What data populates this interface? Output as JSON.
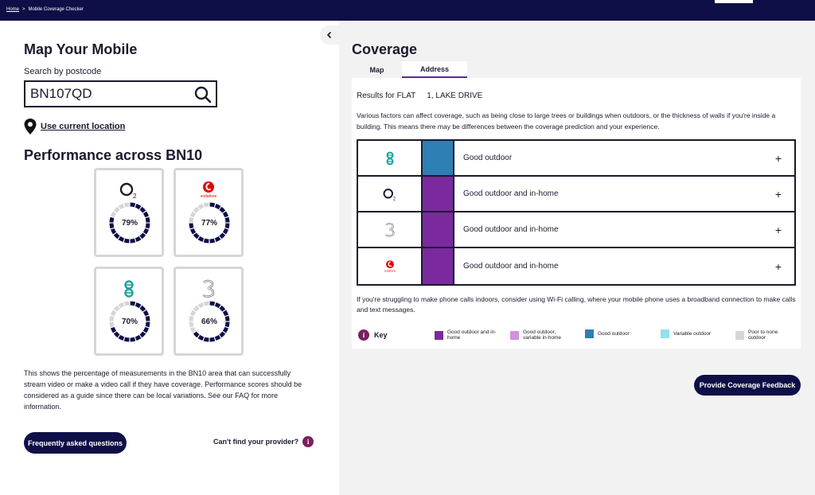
{
  "breadcrumb": {
    "home": "Home",
    "separator": ">",
    "current": "Mobile Coverage Checker"
  },
  "left": {
    "title": "Map Your Mobile",
    "search_label": "Search by postcode",
    "search_value": "BN107QD",
    "use_location": "Use current location",
    "performance_title": "Performance across BN10",
    "operators": [
      {
        "name": "O2",
        "icon": "o2-logo",
        "percent": "79%",
        "value": 79
      },
      {
        "name": "vodafone",
        "icon": "vodafone-logo",
        "percent": "77%",
        "value": 77
      },
      {
        "name": "EE",
        "icon": "ee-logo",
        "percent": "70%",
        "value": 70
      },
      {
        "name": "Three",
        "icon": "three-logo",
        "percent": "66%",
        "value": 66
      }
    ],
    "description": "This shows the percentage of measurements in the BN10 area that can successfully stream video or make a video call if they have coverage. Performance scores should be considered as a guide since there can be local variations. See our FAQ for more information.",
    "faq_button": "Frequently asked questions",
    "cant_find": "Can't find your provider?"
  },
  "coverage": {
    "title": "Coverage",
    "tabs": [
      {
        "label": "Map"
      },
      {
        "label": "Address"
      }
    ],
    "results_prefix": "Results for FLAT",
    "results_address": "1, LAKE DRIVE",
    "factors": "Various factors can affect coverage, such as being close to large trees or buildings when outdoors, or the thickness of walls if you're inside a building. This means there may be differences between the coverage prediction and your experience.",
    "rows": [
      {
        "operator": "EE",
        "icon": "ee-logo",
        "status": "Good outdoor",
        "color": "#2e7fb3"
      },
      {
        "operator": "O2",
        "icon": "o2-logo",
        "status": "Good outdoor and in-home",
        "color": "#7a2a9e"
      },
      {
        "operator": "Three",
        "icon": "three-logo",
        "status": "Good outdoor and in-home",
        "color": "#7a2a9e"
      },
      {
        "operator": "vodafone",
        "icon": "vodafone-logo",
        "status": "Good outdoor and in-home",
        "color": "#7a2a9e"
      }
    ],
    "expand_glyph": "+",
    "wifi_note": "If you're struggling to make phone calls indoors, consider using Wi-Fi calling, where your mobile phone uses a broadband connection to make calls and text messages.",
    "key_label": "Key",
    "legend": [
      {
        "label": "Good outdoor and in-home",
        "color": "#7a2a9e"
      },
      {
        "label": "Good outdoor, variable in-home",
        "color": "#d38fe0"
      },
      {
        "label": "Good outdoor",
        "color": "#2e7fb3"
      },
      {
        "label": "Variable outdoor",
        "color": "#8fe0f2"
      },
      {
        "label": "Poor to none outdoor",
        "color": "#d6d6d6"
      }
    ],
    "feedback_button": "Provide Coverage Feedback"
  }
}
